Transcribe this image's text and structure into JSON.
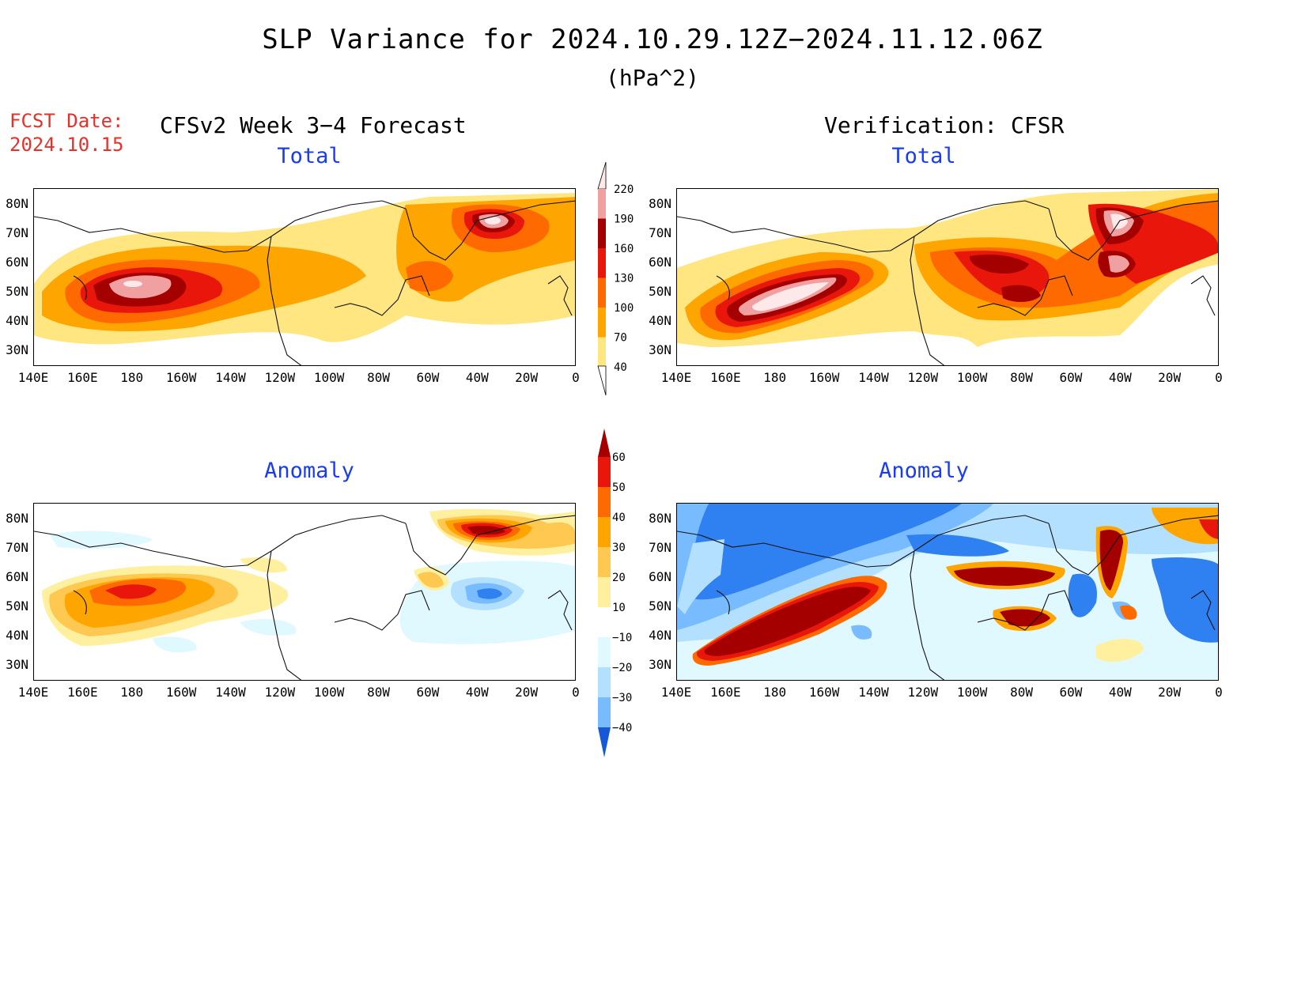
{
  "title": "SLP Variance for 2024.10.29.12Z−2024.11.12.06Z",
  "units": "(hPa^2)",
  "fcst_date_label": "FCST Date:",
  "fcst_date": "2024.10.15",
  "left_header": "CFSv2 Week 3−4 Forecast",
  "right_header": "Verification: CFSR",
  "panels": {
    "fcst_total": {
      "title": "Total"
    },
    "verif_total": {
      "title": "Total"
    },
    "fcst_anom": {
      "title": "Anomaly"
    },
    "verif_anom": {
      "title": "Anomaly"
    }
  },
  "lat_labels": [
    "80N",
    "70N",
    "60N",
    "50N",
    "40N",
    "30N"
  ],
  "lon_labels": [
    "140E",
    "160E",
    "180",
    "160W",
    "140W",
    "120W",
    "100W",
    "80W",
    "60W",
    "40W",
    "20W",
    "0"
  ],
  "total_colorbar": {
    "levels": [
      "40",
      "70",
      "100",
      "130",
      "160",
      "190",
      "220"
    ],
    "colors": [
      "#ffe680",
      "#ffa500",
      "#ff6a00",
      "#e8160b",
      "#a40000",
      "#f0a0a0",
      "#fde8ea"
    ]
  },
  "anom_colorbar": {
    "levels": [
      "60",
      "50",
      "40",
      "30",
      "20",
      "10",
      "−10",
      "−20",
      "−30",
      "−40"
    ],
    "colors_warm": [
      "#a40000",
      "#e8160b",
      "#ff6a00",
      "#ffa500",
      "#ffc850",
      "#fff0a0"
    ],
    "colors_cold": [
      "#e0f8ff",
      "#b4e0ff",
      "#78bcff",
      "#2f80f0",
      "#1658d8"
    ]
  }
}
